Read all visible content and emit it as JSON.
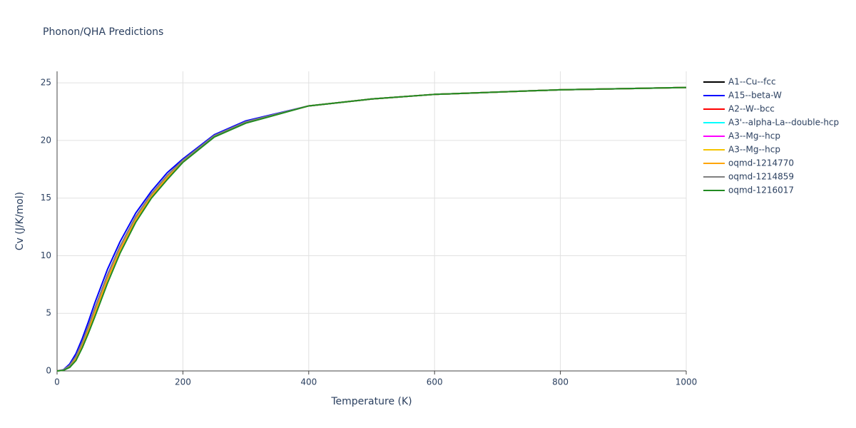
{
  "chart_data": {
    "type": "line",
    "title": "Phonon/QHA Predictions",
    "x_label": "Temperature (K)",
    "y_label": "Cv (J/K/mol)",
    "x": [
      0,
      10,
      20,
      30,
      40,
      50,
      60,
      80,
      100,
      125,
      150,
      175,
      200,
      250,
      300,
      400,
      500,
      600,
      800,
      1000
    ],
    "xlim": [
      0,
      1000
    ],
    "xticks": [
      0,
      200,
      400,
      600,
      800,
      1000
    ],
    "ylim": [
      0,
      26
    ],
    "yticks": [
      0,
      5,
      10,
      15,
      20,
      25
    ],
    "grid": true,
    "legend": "right",
    "series": [
      {
        "name": "A1--Cu--fcc",
        "color": "#000000",
        "values": [
          0,
          0.08,
          0.48,
          1.26,
          2.48,
          3.9,
          5.42,
          8.32,
          10.8,
          13.38,
          15.36,
          16.96,
          18.28,
          20.42,
          21.62,
          23.0,
          23.6,
          24.0,
          24.4,
          24.6
        ]
      },
      {
        "name": "A15--beta-W",
        "color": "#0000ff",
        "values": [
          0,
          0.1,
          0.6,
          1.5,
          2.8,
          4.3,
          5.9,
          8.8,
          11.2,
          13.7,
          15.6,
          17.2,
          18.4,
          20.5,
          21.7,
          23.0,
          23.6,
          24.0,
          24.4,
          24.6
        ]
      },
      {
        "name": "A2--W--bcc",
        "color": "#ff0000",
        "values": [
          0,
          0.08,
          0.45,
          1.2,
          2.4,
          3.8,
          5.3,
          8.2,
          10.7,
          13.3,
          15.3,
          16.9,
          18.25,
          20.4,
          21.6,
          23.0,
          23.6,
          24.0,
          24.4,
          24.6
        ]
      },
      {
        "name": "A3'--alpha-La--double-hcp",
        "color": "#00ffff",
        "values": [
          0,
          0.08,
          0.47,
          1.23,
          2.44,
          3.85,
          5.36,
          8.26,
          10.75,
          13.34,
          15.33,
          16.93,
          18.27,
          20.41,
          21.61,
          23.0,
          23.6,
          24.0,
          24.4,
          24.6
        ]
      },
      {
        "name": "A3--Mg--hcp",
        "color": "#ff00ff",
        "values": [
          0,
          0.08,
          0.47,
          1.23,
          2.44,
          3.85,
          5.36,
          8.26,
          10.75,
          13.34,
          15.33,
          16.93,
          18.27,
          20.41,
          21.61,
          23.0,
          23.6,
          24.0,
          24.4,
          24.6
        ]
      },
      {
        "name": "A3--Mg--hcp",
        "color": "#f5c400",
        "values": [
          0,
          0.07,
          0.39,
          1.08,
          2.24,
          3.6,
          5.06,
          7.96,
          10.5,
          13.14,
          15.18,
          16.78,
          18.19,
          20.36,
          21.56,
          23.0,
          23.6,
          24.0,
          24.4,
          24.6
        ]
      },
      {
        "name": "oqmd-1214770",
        "color": "#ffa500",
        "values": [
          0,
          0.07,
          0.39,
          1.08,
          2.24,
          3.6,
          5.06,
          7.96,
          10.5,
          13.14,
          15.18,
          16.78,
          18.19,
          20.36,
          21.56,
          23.0,
          23.6,
          24.0,
          24.4,
          24.6
        ]
      },
      {
        "name": "oqmd-1214859",
        "color": "#808080",
        "values": [
          0,
          0.08,
          0.48,
          1.26,
          2.48,
          3.9,
          5.42,
          8.32,
          10.8,
          13.38,
          15.36,
          16.96,
          18.28,
          20.42,
          21.62,
          23.0,
          23.6,
          24.0,
          24.4,
          24.6
        ]
      },
      {
        "name": "oqmd-1216017",
        "color": "#228b22",
        "values": [
          0,
          0.05,
          0.3,
          0.9,
          2.0,
          3.3,
          4.7,
          7.6,
          10.2,
          12.9,
          15.0,
          16.6,
          18.1,
          20.3,
          21.5,
          23.0,
          23.6,
          24.0,
          24.4,
          24.6
        ]
      }
    ]
  }
}
